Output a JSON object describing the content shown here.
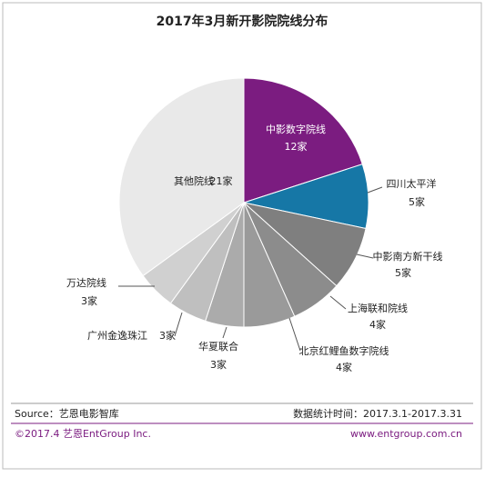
{
  "chart_data": {
    "type": "pie",
    "title": "2017年3月新开影院院线分布",
    "categories": [
      "中影数字院线",
      "四川太平洋",
      "中影南方新干线",
      "上海联和院线",
      "北京红鲤鱼数字院线",
      "华夏联合",
      "广州金逸珠江",
      "万达院线",
      "其他院线"
    ],
    "values": [
      12,
      5,
      5,
      4,
      4,
      3,
      3,
      3,
      21
    ],
    "value_labels": [
      "12家",
      "5家",
      "5家",
      "4家",
      "4家",
      "3家",
      "3家",
      "3家",
      "21家"
    ],
    "colors": [
      "#7b1c80",
      "#1677a6",
      "#7f7f7f",
      "#8c8c8c",
      "#9a9a9a",
      "#ababab",
      "#bfbfbf",
      "#d0d0d0",
      "#e9e9e9"
    ]
  },
  "footer": {
    "source": "Source：艺恩电影智库",
    "period": "数据统计时间：2017.3.1-2017.3.31",
    "copyright": "©2017.4 艺恩EntGroup Inc.",
    "website": "www.entgroup.com.cn"
  }
}
